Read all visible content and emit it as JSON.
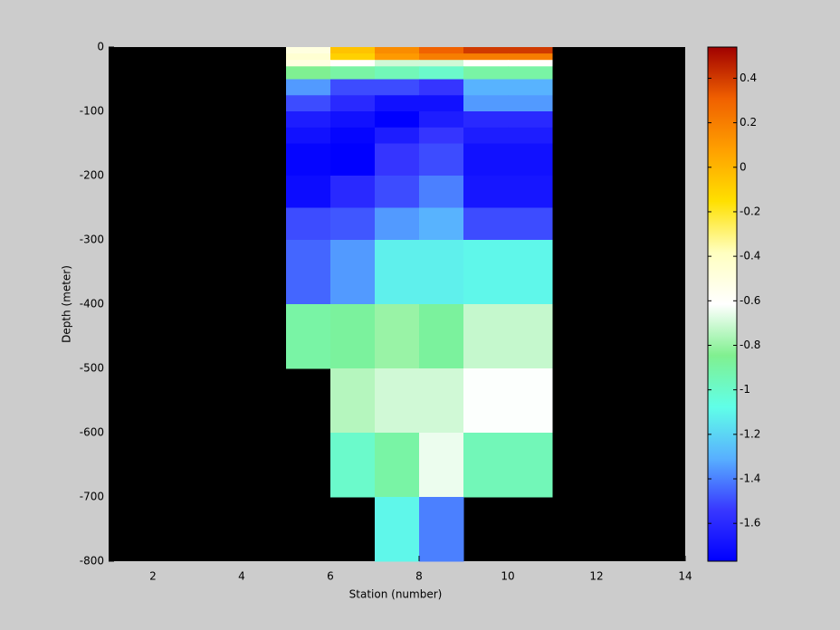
{
  "chart_data": {
    "type": "heatmap",
    "xlabel": "Station (number)",
    "ylabel": "Depth (meter)",
    "x_edges": [
      5,
      6,
      7,
      8,
      9,
      10,
      11
    ],
    "y_edges": [
      0,
      -10,
      -20,
      -30,
      -50,
      -75,
      -100,
      -125,
      -150,
      -200,
      -250,
      -300,
      -400,
      -500,
      -600,
      -700,
      -800
    ],
    "values": [
      [
        -0.5,
        -0.05,
        0.15,
        0.3,
        0.4,
        0.4
      ],
      [
        -0.45,
        -0.1,
        0.1,
        0.2,
        0.2,
        0.2
      ],
      [
        -0.5,
        -0.6,
        -0.7,
        -0.7,
        -0.6,
        -0.6
      ],
      [
        -0.85,
        -0.9,
        -0.95,
        -1.0,
        -0.9,
        -0.9
      ],
      [
        -1.35,
        -1.5,
        -1.5,
        -1.55,
        -1.3,
        -1.3
      ],
      [
        -1.5,
        -1.6,
        -1.7,
        -1.7,
        -1.35,
        -1.35
      ],
      [
        -1.65,
        -1.7,
        -1.77,
        -1.65,
        -1.6,
        -1.6
      ],
      [
        -1.7,
        -1.75,
        -1.65,
        -1.55,
        -1.65,
        -1.65
      ],
      [
        -1.75,
        -1.77,
        -1.55,
        -1.5,
        -1.7,
        -1.7
      ],
      [
        -1.72,
        -1.6,
        -1.5,
        -1.4,
        -1.68,
        -1.68
      ],
      [
        -1.5,
        -1.48,
        -1.35,
        -1.3,
        -1.5,
        -1.5
      ],
      [
        -1.45,
        -1.35,
        -1.12,
        -1.12,
        -1.1,
        -1.1
      ],
      [
        -0.9,
        -0.88,
        -0.8,
        -0.88,
        -0.72,
        -0.72
      ],
      [
        null,
        -0.75,
        -0.7,
        -0.7,
        -0.62,
        -0.62
      ],
      [
        null,
        -1.0,
        -0.9,
        -0.65,
        -0.95,
        -0.95
      ],
      [
        null,
        null,
        -1.1,
        -1.4,
        null,
        null
      ]
    ],
    "xlim": [
      1,
      14
    ],
    "xticks": [
      2,
      4,
      6,
      8,
      10,
      12,
      14
    ],
    "ylim": [
      -800,
      0
    ],
    "yticks": [
      -800,
      -700,
      -600,
      -500,
      -400,
      -300,
      -200,
      -100,
      0
    ],
    "clim": [
      -1.77,
      0.54
    ],
    "cticks": [
      -1.6,
      -1.4,
      -1.2,
      -1,
      -0.8,
      -0.6,
      -0.4,
      -0.2,
      0,
      0.2,
      0.4
    ],
    "colormap": [
      "#0000ff",
      "#3838ff",
      "#58b0ff",
      "#60ffe8",
      "#80f090",
      "#ffffff",
      "#ffffc0",
      "#ffe000",
      "#ffa000",
      "#f06000",
      "#a00000"
    ],
    "background": "#000000"
  }
}
